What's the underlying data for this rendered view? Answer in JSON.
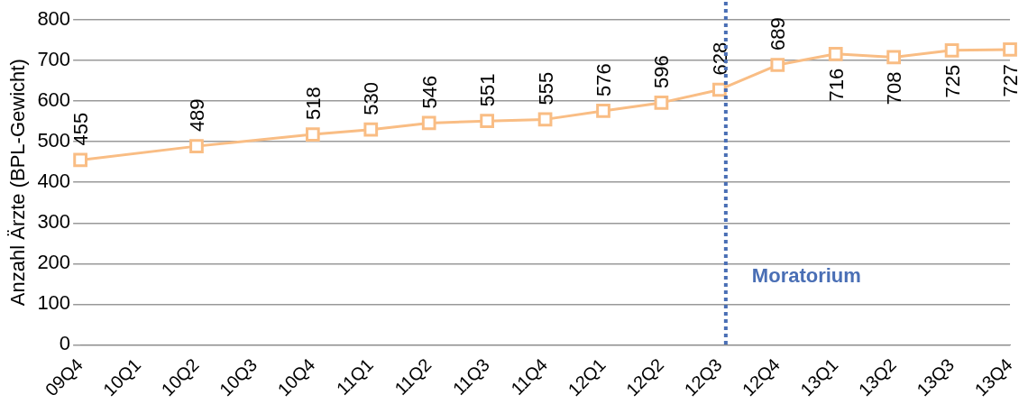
{
  "chart_data": {
    "type": "line",
    "ylabel": "Anzahl Ärzte (BPL-Gewicht)",
    "categories": [
      "09Q4",
      "10Q1",
      "10Q2",
      "10Q3",
      "10Q4",
      "11Q1",
      "11Q2",
      "11Q3",
      "11Q4",
      "12Q1",
      "12Q2",
      "12Q3",
      "12Q4",
      "13Q1",
      "13Q2",
      "13Q3",
      "13Q4"
    ],
    "series": [
      {
        "color": "#f9bd84",
        "values": [
          455,
          null,
          489,
          null,
          518,
          530,
          546,
          551,
          555,
          576,
          596,
          628,
          689,
          716,
          708,
          725,
          727
        ]
      }
    ],
    "ylim": [
      0,
      800
    ],
    "yticks": [
      0,
      100,
      200,
      300,
      400,
      500,
      600,
      700,
      800
    ],
    "grid": "y",
    "legend": false,
    "marker": "square",
    "line_style": "solid",
    "data_labels": true,
    "ref_lines": [
      {
        "axis": "x",
        "value": "12Q3",
        "label": "Moratorium",
        "color": "#4a6fb5",
        "line_style": "dotted"
      }
    ]
  }
}
